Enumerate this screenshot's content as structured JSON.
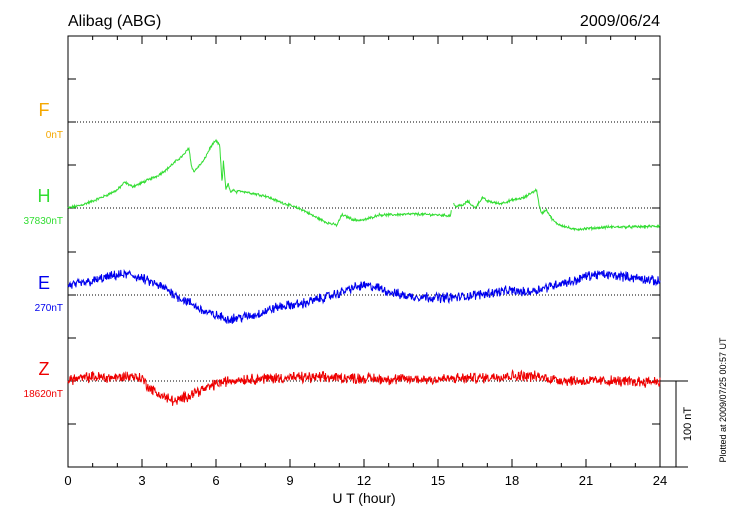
{
  "header": {
    "station": "Alibag (ABG)",
    "date": "2009/06/24"
  },
  "footer": {
    "plotted_note": "Plotted at 2009/07/25 00:57 UT"
  },
  "chart_data": {
    "type": "line",
    "title": "Alibag (ABG)",
    "date": "2009/06/24",
    "xlabel": "U T (hour)",
    "xlim": [
      0,
      24
    ],
    "x_ticks": [
      0,
      3,
      6,
      9,
      12,
      15,
      18,
      21,
      24
    ],
    "x_tick_labels": [
      "0",
      "3",
      "6",
      "9",
      "12",
      "15",
      "18",
      "21",
      "24"
    ],
    "scale_bar_label": "100 nT",
    "scale_bar_nT": 100,
    "series": [
      {
        "name": "F",
        "baseline_label": "0nT",
        "color": "#f5a800",
        "x": [],
        "values": []
      },
      {
        "name": "H",
        "baseline_label": "37830nT",
        "color": "#33dd33",
        "noise": 1.2,
        "x": [
          0,
          0.5,
          1.0,
          1.5,
          2.0,
          2.3,
          2.6,
          2.9,
          3.2,
          3.6,
          4.0,
          4.4,
          4.7,
          4.9,
          5.0,
          5.1,
          5.5,
          5.8,
          6.0,
          6.15,
          6.25,
          6.3,
          6.4,
          6.5,
          6.6,
          6.7,
          6.8,
          7.0,
          7.5,
          8.0,
          8.5,
          9.0,
          9.5,
          10.0,
          10.5,
          10.9,
          11.1,
          11.3,
          11.6,
          12.0,
          12.3,
          12.6,
          13.0,
          14.0,
          15.0,
          15.5,
          15.6,
          15.7,
          16.0,
          16.2,
          16.5,
          16.8,
          17.0,
          17.5,
          18.0,
          18.5,
          18.8,
          19.0,
          19.1,
          19.2,
          19.4,
          19.6,
          19.8,
          20.0,
          20.5,
          21.0,
          22.0,
          23.0,
          24.0
        ],
        "values": [
          0,
          3,
          8,
          14,
          21,
          30,
          25,
          28,
          32,
          37,
          45,
          55,
          62,
          70,
          50,
          42,
          55,
          72,
          78,
          73,
          28,
          55,
          22,
          28,
          17,
          22,
          18,
          20,
          17,
          14,
          8,
          3,
          -2,
          -10,
          -17,
          -20,
          -8,
          -10,
          -14,
          -14,
          -11,
          -8,
          -8,
          -7,
          -8,
          -9,
          6,
          2,
          3,
          8,
          0,
          12,
          8,
          5,
          9,
          12,
          18,
          21,
          3,
          -6,
          -2,
          -12,
          -18,
          -20,
          -25,
          -24,
          -22,
          -22,
          -21
        ]
      },
      {
        "name": "E",
        "baseline_label": "270nT",
        "color": "#0000ee",
        "noise": 4.5,
        "x": [
          0,
          0.5,
          1.0,
          1.5,
          2.0,
          2.5,
          3.0,
          3.5,
          4.0,
          4.5,
          5.0,
          5.5,
          6.0,
          6.5,
          7.0,
          7.5,
          8.0,
          8.5,
          9.0,
          9.5,
          10.0,
          10.5,
          11.0,
          11.5,
          12.0,
          12.5,
          13.0,
          13.5,
          14.0,
          14.5,
          15.0,
          15.5,
          16.0,
          16.5,
          17.0,
          17.5,
          18.0,
          18.5,
          19.0,
          19.5,
          20.0,
          20.5,
          21.0,
          21.5,
          22.0,
          22.5,
          23.0,
          23.5,
          24.0
        ],
        "values": [
          11,
          13,
          16,
          20,
          23,
          24,
          19,
          13,
          7,
          -3,
          -10,
          -19,
          -24,
          -28,
          -26,
          -24,
          -19,
          -14,
          -12,
          -10,
          -6,
          -2,
          2,
          8,
          11,
          9,
          4,
          0,
          -2,
          -2,
          -3,
          -3,
          -2,
          0,
          2,
          4,
          5,
          3,
          6,
          10,
          14,
          16,
          22,
          24,
          23,
          22,
          20,
          18,
          15
        ]
      },
      {
        "name": "Z",
        "baseline_label": "18620nT",
        "color": "#ee0000",
        "noise": 5.0,
        "x": [
          0,
          0.5,
          1.0,
          1.5,
          2.0,
          2.5,
          3.0,
          3.3,
          3.6,
          4.0,
          4.4,
          4.8,
          5.2,
          5.6,
          6.0,
          6.5,
          7.0,
          8.0,
          9.0,
          10.0,
          11.0,
          12.0,
          13.0,
          14.0,
          15.0,
          16.0,
          17.0,
          17.5,
          18.0,
          18.5,
          19.0,
          19.5,
          20.0,
          21.0,
          22.0,
          23.0,
          24.0
        ],
        "values": [
          2,
          3,
          5,
          4,
          4,
          6,
          3,
          -8,
          -14,
          -20,
          -24,
          -18,
          -12,
          -9,
          -3,
          0,
          2,
          3,
          4,
          4,
          4,
          3,
          2,
          2,
          2,
          3,
          4,
          6,
          6,
          6,
          5,
          3,
          1,
          0,
          0,
          -1,
          0
        ]
      }
    ]
  }
}
